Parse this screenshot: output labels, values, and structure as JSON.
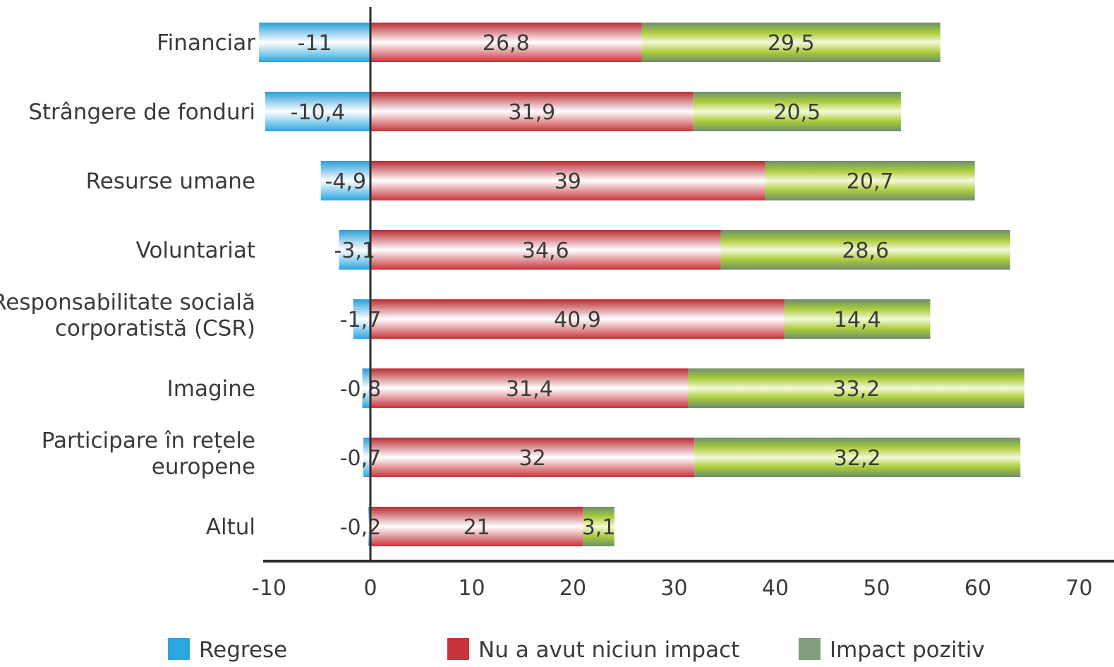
{
  "chart_data": {
    "type": "bar",
    "orientation": "horizontal",
    "stacked": true,
    "title": "",
    "xlabel": "",
    "ylabel": "",
    "categories": [
      [
        "Financiar"
      ],
      [
        "Strângere de fonduri"
      ],
      [
        "Resurse umane"
      ],
      [
        "Voluntariat"
      ],
      [
        "Responsabilitate socială",
        "corporatistă (CSR)"
      ],
      [
        "Imagine"
      ],
      [
        "Participare în rețele",
        "europene"
      ],
      [
        "Altul"
      ]
    ],
    "series": [
      {
        "name": "Regrese",
        "color": "#2aa6e0",
        "values": [
          -11,
          -10.4,
          -4.9,
          -3.1,
          -1.7,
          -0.8,
          -0.7,
          -0.2
        ],
        "labels": [
          "-11",
          "-10,4",
          "-4,9",
          "-3,1",
          "-1,7",
          "-0,8",
          "-0,7",
          "-0,2"
        ]
      },
      {
        "name": "Nu a avut niciun impact",
        "color": "#c8323a",
        "values": [
          26.8,
          31.9,
          39,
          34.6,
          40.9,
          31.4,
          32,
          21
        ],
        "labels": [
          "26,8",
          "31,9",
          "39",
          "34,6",
          "40,9",
          "31,4",
          "32",
          "21"
        ]
      },
      {
        "name": "Impact pozitiv",
        "color": "#7fa07a",
        "values": [
          29.5,
          20.5,
          20.7,
          28.6,
          14.4,
          33.2,
          32.2,
          3.1
        ],
        "labels": [
          "29,5",
          "20,5",
          "20,7",
          "28,6",
          "14,4",
          "33,2",
          "32,2",
          "3,1"
        ]
      }
    ],
    "xticks": [
      "-10",
      "0",
      "10",
      "20",
      "30",
      "40",
      "50",
      "60",
      "70"
    ],
    "xlim": [
      -10,
      70
    ],
    "grid": false,
    "legend_position": "bottom"
  }
}
